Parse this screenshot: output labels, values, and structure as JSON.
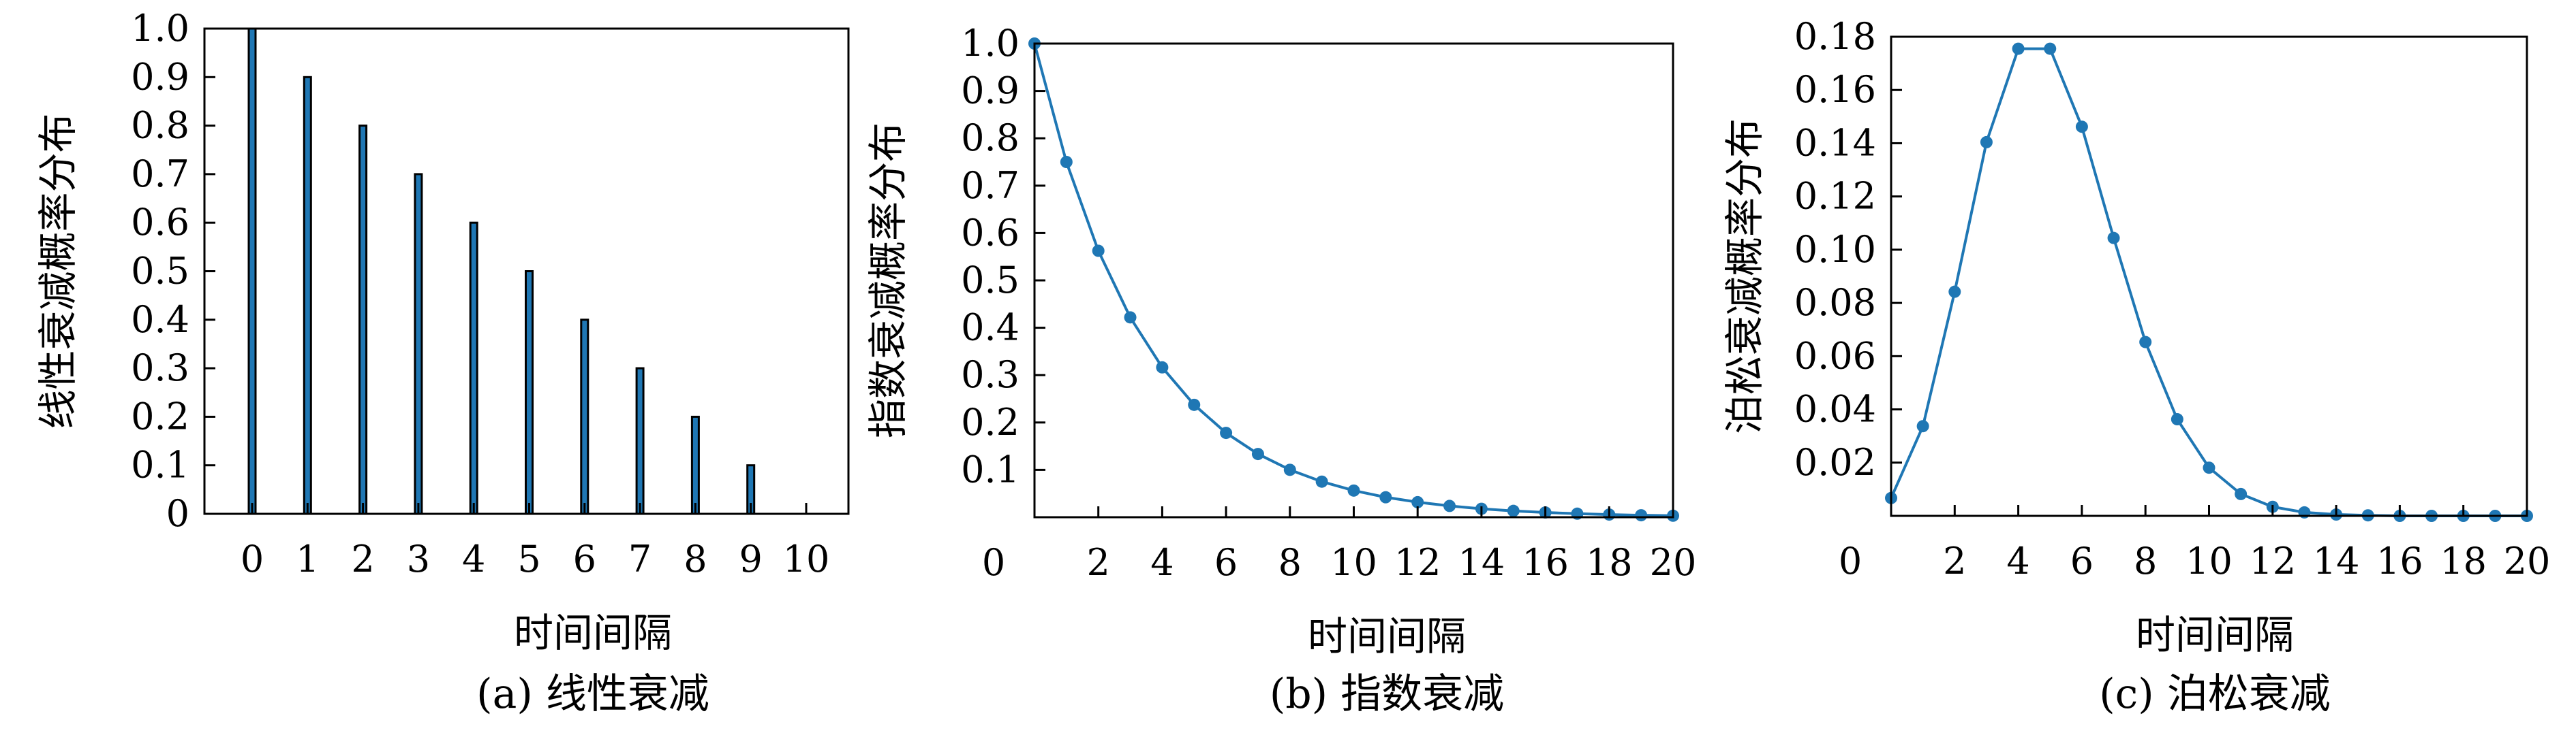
{
  "colors": {
    "series": "#1f77b4",
    "axis": "#000000"
  },
  "chart_data": [
    {
      "type": "bar",
      "caption": "(a) 线性衰减",
      "xlabel": "时间间隔",
      "ylabel": "线性衰减概率分布",
      "categories": [
        "0",
        "1",
        "2",
        "3",
        "4",
        "5",
        "6",
        "7",
        "8",
        "9",
        "10"
      ],
      "values": [
        1.0,
        0.9,
        0.8,
        0.7,
        0.6,
        0.5,
        0.4,
        0.3,
        0.2,
        0.1,
        0.0
      ],
      "ylim": [
        0,
        1.0
      ],
      "yticks": [
        "0",
        "0.1",
        "0.2",
        "0.3",
        "0.4",
        "0.5",
        "0.6",
        "0.7",
        "0.8",
        "0.9",
        "1.0"
      ],
      "grid": false,
      "legend": "none"
    },
    {
      "type": "line",
      "caption": "(b) 指数衰减",
      "xlabel": "时间间隔",
      "ylabel": "指数衰减概率分布",
      "x": [
        0,
        1,
        2,
        3,
        4,
        5,
        6,
        7,
        8,
        9,
        10,
        11,
        12,
        13,
        14,
        15,
        16,
        17,
        18,
        19,
        20
      ],
      "y": [
        1.0,
        0.75,
        0.5625,
        0.4219,
        0.3164,
        0.2373,
        0.178,
        0.1335,
        0.1001,
        0.0751,
        0.0563,
        0.0422,
        0.0317,
        0.0238,
        0.0178,
        0.0134,
        0.01,
        0.0075,
        0.0056,
        0.0042,
        0.0032
      ],
      "xlim": [
        0,
        20
      ],
      "ylim": [
        0,
        1.0
      ],
      "xticks": [
        "0",
        "2",
        "4",
        "6",
        "8",
        "10",
        "12",
        "14",
        "16",
        "18",
        "20"
      ],
      "yticks": [
        "0.1",
        "0.2",
        "0.3",
        "0.4",
        "0.5",
        "0.6",
        "0.7",
        "0.8",
        "0.9",
        "1.0"
      ],
      "grid": false,
      "legend": "none"
    },
    {
      "type": "line",
      "caption": "(c) 泊松衰减",
      "xlabel": "时间间隔",
      "ylabel": "泊松衰减概率分布",
      "x": [
        0,
        1,
        2,
        3,
        4,
        5,
        6,
        7,
        8,
        9,
        10,
        11,
        12,
        13,
        14,
        15,
        16,
        17,
        18,
        19,
        20
      ],
      "y": [
        0.0067,
        0.0337,
        0.0842,
        0.1404,
        0.1755,
        0.1755,
        0.1462,
        0.1044,
        0.0653,
        0.0363,
        0.0181,
        0.0082,
        0.0034,
        0.0013,
        0.0005,
        0.0002,
        0.0,
        0.0,
        0.0,
        0.0,
        0.0
      ],
      "xlim": [
        0,
        20
      ],
      "ylim": [
        0,
        0.18
      ],
      "xticks": [
        "0",
        "2",
        "4",
        "6",
        "8",
        "10",
        "12",
        "14",
        "16",
        "18",
        "20"
      ],
      "yticks": [
        "0.02",
        "0.04",
        "0.06",
        "0.08",
        "0.10",
        "0.12",
        "0.14",
        "0.16",
        "0.18"
      ],
      "grid": false,
      "legend": "none"
    }
  ]
}
